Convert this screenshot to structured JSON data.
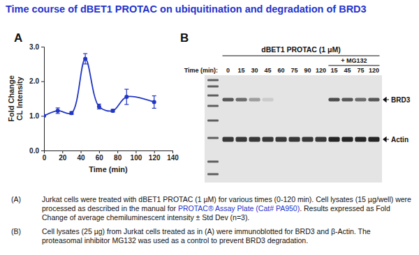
{
  "page": {
    "title": "Time course of dBET1 PROTAC on ubiquitination and degradation of BRD3",
    "captions": [
      {
        "label": "(A)",
        "before": "Jurkat cells were treated with dBET1 PROTAC (1 µM) for various times (0-120 min). Cell lysates (15 µg/well) were processed as described in the manual for ",
        "link": "PROTAC® Assay Plate (Cat# PA950)",
        "after": ". Results expressed as Fold Change of average chemiluminescent intensity ± Std Dev (n=3)."
      },
      {
        "label": "(B)",
        "before": "Cell lysates (25 µg) from Jurkat cells treated as in (A) were immunoblotted for BRD3 and β-Actin. The proteasomal inhibitor MG132 was used as a control to prevent BRD3 degradation."
      }
    ]
  },
  "chart_data": [
    {
      "type": "line",
      "panel": "A",
      "xlabel": "Time (min)",
      "ylabel": [
        "Fold Change",
        "CL Intensity"
      ],
      "x": [
        0,
        15,
        30,
        45,
        60,
        75,
        90,
        120
      ],
      "series": [
        {
          "color": "#2136c4",
          "values": [
            1.0,
            1.15,
            1.08,
            2.65,
            1.27,
            1.15,
            1.55,
            1.4
          ],
          "errors": [
            0,
            0.08,
            0.04,
            0.15,
            0.07,
            0.04,
            0.22,
            0.18
          ]
        }
      ],
      "marker": "circle",
      "line_style": "smooth",
      "grid": false,
      "xlim": [
        0,
        140
      ],
      "xticks": [
        0,
        20,
        40,
        60,
        80,
        100,
        120,
        140
      ],
      "ylim": [
        0,
        3
      ],
      "yticks": [
        {
          "value": 0,
          "label": "0.0"
        },
        {
          "value": 1,
          "label": "1.0"
        },
        {
          "value": 2,
          "label": "2.0"
        },
        {
          "value": 3,
          "label": "3.0"
        }
      ]
    },
    {
      "type": "blot",
      "panel": "B",
      "title": "dBET1 PROTAC (1 μM)",
      "treatment": "+ MG132",
      "lane_header": "Time (min):",
      "lanes": [
        {
          "time": 0,
          "mg132": false
        },
        {
          "time": 15,
          "mg132": false
        },
        {
          "time": 30,
          "mg132": false
        },
        {
          "time": 45,
          "mg132": false
        },
        {
          "time": 60,
          "mg132": false
        },
        {
          "time": 75,
          "mg132": false
        },
        {
          "time": 90,
          "mg132": false
        },
        {
          "time": 120,
          "mg132": false
        },
        {
          "time": 15,
          "mg132": true
        },
        {
          "time": 45,
          "mg132": true
        },
        {
          "time": 75,
          "mg132": true
        },
        {
          "time": 120,
          "mg132": true
        }
      ],
      "intensity_range": [
        0,
        1
      ],
      "bands": [
        {
          "name": "BRD3",
          "color": "#1a1a1a",
          "values": [
            0.7,
            0.6,
            0.35,
            0.12,
            0,
            0,
            0,
            0,
            0.75,
            0.7,
            0.6,
            0.7
          ]
        },
        {
          "name": "Actin",
          "color": "#1a1a1a",
          "values": [
            0.85,
            0.85,
            0.85,
            0.85,
            0.85,
            0.85,
            0.85,
            0.85,
            0.95,
            0.95,
            0.95,
            0.95
          ]
        }
      ]
    }
  ]
}
